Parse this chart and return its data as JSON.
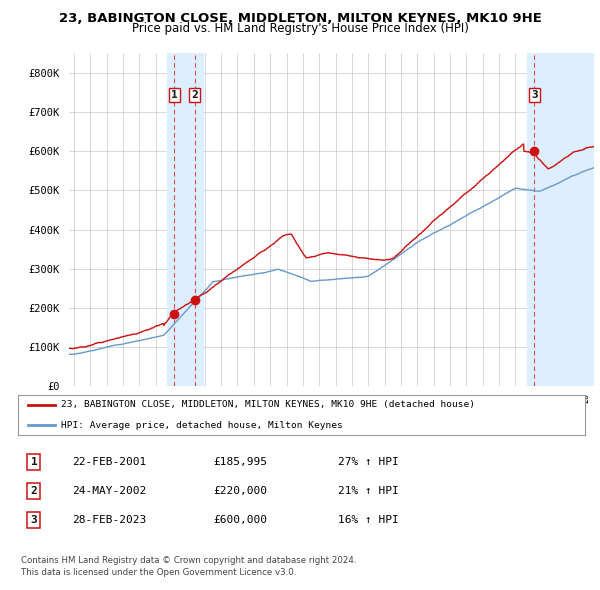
{
  "title": "23, BABINGTON CLOSE, MIDDLETON, MILTON KEYNES, MK10 9HE",
  "subtitle": "Price paid vs. HM Land Registry's House Price Index (HPI)",
  "yticks": [
    0,
    100000,
    200000,
    300000,
    400000,
    500000,
    600000,
    700000,
    800000
  ],
  "ytick_labels": [
    "£0",
    "£100K",
    "£200K",
    "£300K",
    "£400K",
    "£500K",
    "£600K",
    "£700K",
    "£800K"
  ],
  "xlim_start": 1994.7,
  "xlim_end": 2026.8,
  "ylim_min": 0,
  "ylim_max": 850000,
  "background_color": "#ffffff",
  "grid_color": "#c8c8c8",
  "hpi_line_color": "#6699cc",
  "price_line_color": "#cc1111",
  "sale_marker_color": "#cc1111",
  "vline_color": "#dd3333",
  "vband_color": "#ddeeff",
  "hatch_color": "#c8d8e8",
  "legend_label_price": "23, BABINGTON CLOSE, MIDDLETON, MILTON KEYNES, MK10 9HE (detached house)",
  "legend_label_hpi": "HPI: Average price, detached house, Milton Keynes",
  "sales": [
    {
      "num": 1,
      "date_year": 2001.13,
      "price": 185995,
      "label": "22-FEB-2001",
      "price_str": "£185,995",
      "pct": "27%",
      "dir": "↑"
    },
    {
      "num": 2,
      "date_year": 2002.39,
      "price": 220000,
      "label": "24-MAY-2002",
      "price_str": "£220,000",
      "pct": "21%",
      "dir": "↑"
    },
    {
      "num": 3,
      "date_year": 2023.16,
      "price": 600000,
      "label": "28-FEB-2023",
      "price_str": "£600,000",
      "pct": "16%",
      "dir": "↑"
    }
  ],
  "footnote_line1": "Contains HM Land Registry data © Crown copyright and database right 2024.",
  "footnote_line2": "This data is licensed under the Open Government Licence v3.0.",
  "hatch_region_start": 2024.0,
  "hatch_region_end": 2026.8,
  "sale1_band_start": 2000.7,
  "sale1_band_end": 2002.9,
  "sale3_band_start": 2022.7,
  "sale3_band_end": 2024.0
}
